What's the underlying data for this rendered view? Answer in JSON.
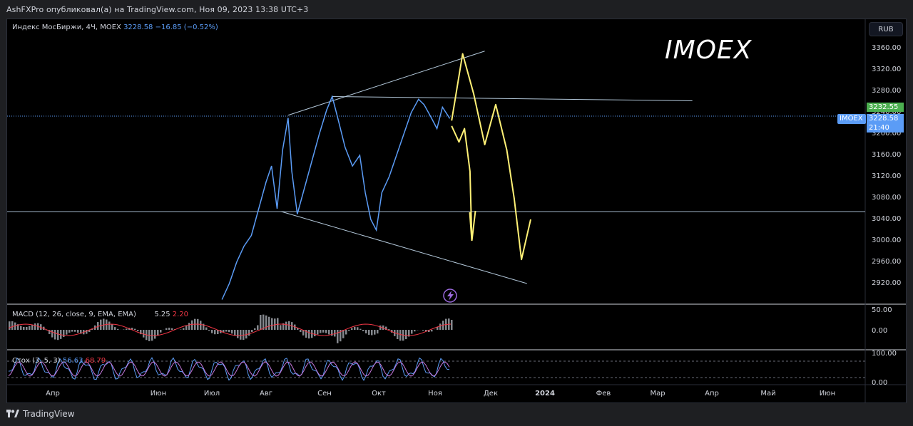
{
  "header": {
    "published_line": "AshFXPro опубликовал(а) на TradingView.com, Ноя 09, 2023 13:38 UTC+3"
  },
  "main_legend": {
    "name": "Индекс МосБиржи, 4Ч, MOEX",
    "value": "3228.58",
    "change": "−16.85 (−0.52%)"
  },
  "title_overlay": "IMOEX",
  "currency_button": "RUB",
  "price_tags": {
    "last_price": "3232.55",
    "symbol": "IMOEX",
    "close": "3228.58",
    "countdown": "21:40"
  },
  "macd_legend": {
    "label": "MACD (12, 26, close, 9, EMA, EMA)",
    "v1": "5.25",
    "v2": "2.20"
  },
  "stoch_legend": {
    "label": "Стох (3, 5, 3)",
    "v1": "56.63",
    "v2": "68.79"
  },
  "footer_brand": "TradingView",
  "colors": {
    "price_line": "#5b9cf6",
    "forecast_arrows": "#fff176",
    "trend_lines": "#b2c7d9",
    "macd_hist": "#b2b5be",
    "macd_signal": "#f23645",
    "stoch_k": "#5b9cf6",
    "stoch_d": "#c678dd",
    "last_price_tag": "#4caf50"
  },
  "chart_data": {
    "type": "line",
    "title": "",
    "xlabel": "",
    "ylabel": "",
    "ylim": [
      2880,
      3400
    ],
    "y_ticks": [
      "3360.00",
      "3320.00",
      "3280.00",
      "3240.00",
      "3200.00",
      "3160.00",
      "3120.00",
      "3080.00",
      "3040.00",
      "3000.00",
      "2960.00",
      "2920.00"
    ],
    "x_ticks": [
      "Апр",
      "Июн",
      "Июл",
      "Авг",
      "Сен",
      "Окт",
      "Ноя",
      "Дек",
      "2024",
      "Фев",
      "Мар",
      "Апр",
      "Май",
      "Июн"
    ],
    "macd_ticks": [
      "50.00",
      "0.00"
    ],
    "stoch_ticks": [
      "100.00",
      "0.00"
    ],
    "series": [
      {
        "x": [
          "2023-07-08",
          "2023-07-12",
          "2023-07-16",
          "2023-07-20",
          "2023-07-24",
          "2023-07-28",
          "2023-08-01",
          "2023-08-04",
          "2023-08-07",
          "2023-08-10",
          "2023-08-13",
          "2023-08-15",
          "2023-08-18",
          "2023-08-22",
          "2023-08-26",
          "2023-08-30",
          "2023-09-03",
          "2023-09-06",
          "2023-09-09",
          "2023-09-13",
          "2023-09-17",
          "2023-09-21",
          "2023-09-24",
          "2023-09-27",
          "2023-09-30",
          "2023-10-03",
          "2023-10-07",
          "2023-10-11",
          "2023-10-15",
          "2023-10-19",
          "2023-10-23",
          "2023-10-26",
          "2023-10-30",
          "2023-11-02",
          "2023-11-05",
          "2023-11-09"
        ],
        "values": [
          2890,
          2920,
          2960,
          2990,
          3010,
          3060,
          3110,
          3140,
          3060,
          3170,
          3230,
          3130,
          3050,
          3100,
          3150,
          3200,
          3245,
          3270,
          3230,
          3175,
          3140,
          3160,
          3090,
          3040,
          3020,
          3090,
          3120,
          3160,
          3200,
          3240,
          3265,
          3255,
          3230,
          3210,
          3250,
          3229
        ]
      }
    ],
    "forecast_paths": [
      {
        "x": [
          "2023-11-10",
          "2023-11-16",
          "2023-11-22",
          "2023-11-28",
          "2023-12-04",
          "2023-12-10",
          "2023-12-14",
          "2023-12-18",
          "2023-12-23"
        ],
        "values": [
          3225,
          3350,
          3275,
          3180,
          3255,
          3170,
          3080,
          2965,
          3040
        ]
      },
      {
        "x": [
          "2023-11-10",
          "2023-11-14",
          "2023-11-17",
          "2023-11-20",
          "2023-11-21"
        ],
        "values": [
          3215,
          3185,
          3210,
          3130,
          3000
        ]
      }
    ],
    "trend_lines": [
      {
        "x": [
          "2023-08-13",
          "2023-11-28"
        ],
        "values": [
          3235,
          3355
        ]
      },
      {
        "x": [
          "2023-09-06",
          "2024-03-20"
        ],
        "values": [
          3270,
          3262
        ]
      },
      {
        "x": [
          "2023-08-09",
          "2023-12-21"
        ],
        "values": [
          3055,
          2920
        ]
      }
    ],
    "horizontal_levels": [
      3229,
      3056
    ]
  }
}
